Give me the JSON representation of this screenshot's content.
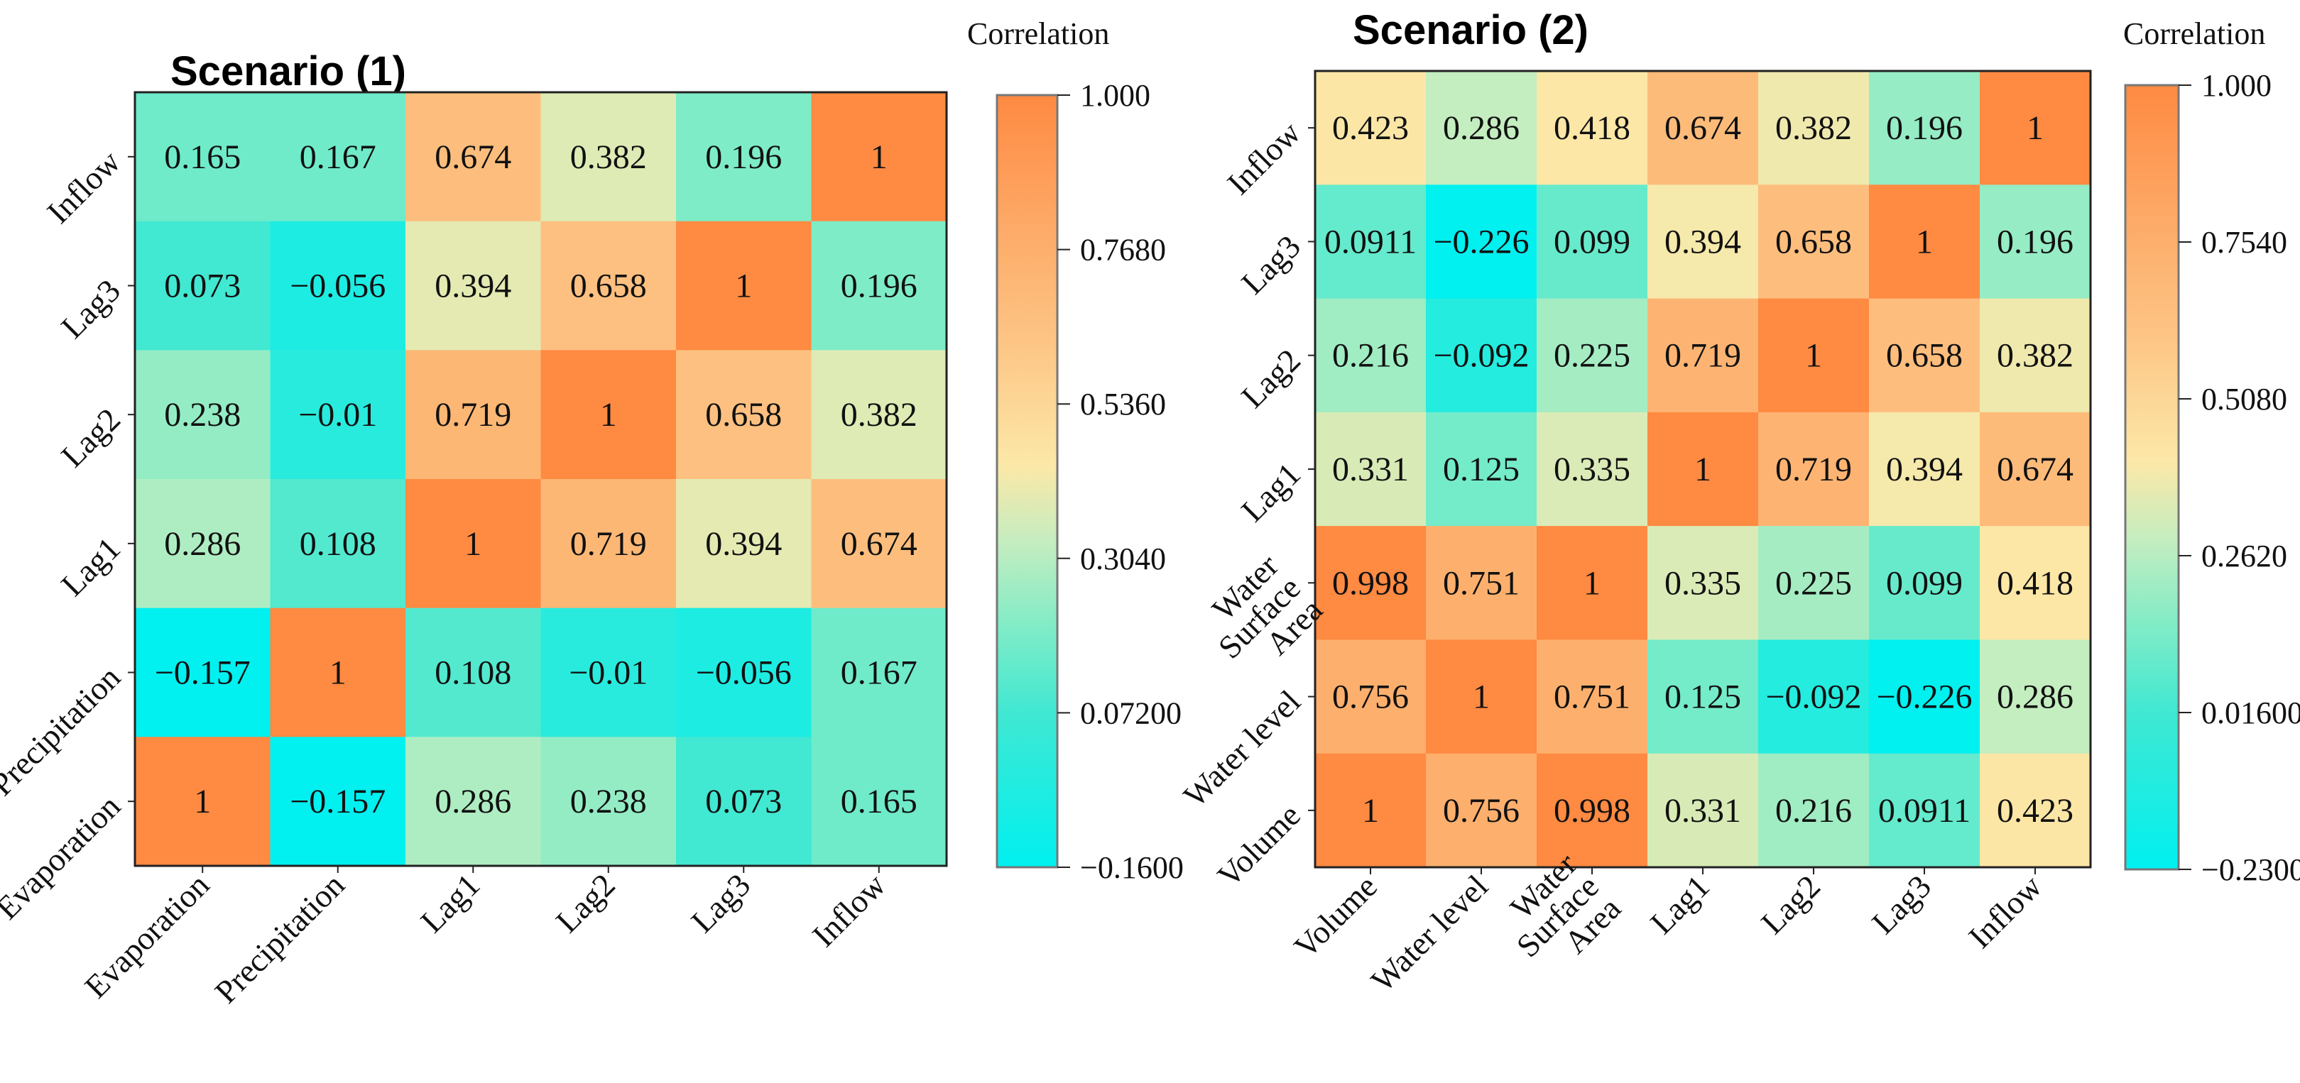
{
  "chart_data": [
    {
      "type": "heatmap",
      "title": "Scenario (1)",
      "colorbar_label": "Correlation",
      "colorbar_ticks": [
        "1.000",
        "0.7680",
        "0.5360",
        "0.3040",
        "0.07200",
        "−0.1600"
      ],
      "vmin": -0.16,
      "vmax": 1.0,
      "x_labels": [
        "Evaporation",
        "Precipitation",
        "Lag1",
        "Lag2",
        "Lag3",
        "Inflow"
      ],
      "y_labels_top_to_bottom": [
        "Inflow",
        "Lag3",
        "Lag2",
        "Lag1",
        "Precipitation",
        "Evaporation"
      ],
      "rows": [
        [
          "0.165",
          "0.167",
          "0.674",
          "0.382",
          "0.196",
          "1"
        ],
        [
          "0.073",
          "−0.056",
          "0.394",
          "0.658",
          "1",
          "0.196"
        ],
        [
          "0.238",
          "−0.01",
          "0.719",
          "1",
          "0.658",
          "0.382"
        ],
        [
          "0.286",
          "0.108",
          "1",
          "0.719",
          "0.394",
          "0.674"
        ],
        [
          "−0.157",
          "1",
          "0.108",
          "−0.01",
          "−0.056",
          "0.167"
        ],
        [
          "1",
          "−0.157",
          "0.286",
          "0.238",
          "0.073",
          "0.165"
        ]
      ]
    },
    {
      "type": "heatmap",
      "title": "Scenario (2)",
      "colorbar_label": "Correlation",
      "colorbar_ticks": [
        "1.000",
        "0.7540",
        "0.5080",
        "0.2620",
        "0.01600",
        "−0.2300"
      ],
      "vmin": -0.23,
      "vmax": 1.0,
      "x_labels": [
        "Volume",
        "Water level",
        "Water Surface Area",
        "Lag1",
        "Lag2",
        "Lag3",
        "Inflow"
      ],
      "y_labels_top_to_bottom": [
        "Inflow",
        "Lag3",
        "Lag2",
        "Lag1",
        "Water Surface Area",
        "Water level",
        "Volume"
      ],
      "rows": [
        [
          "0.423",
          "0.286",
          "0.418",
          "0.674",
          "0.382",
          "0.196",
          "1"
        ],
        [
          "0.0911",
          "−0.226",
          "0.099",
          "0.394",
          "0.658",
          "1",
          "0.196"
        ],
        [
          "0.216",
          "−0.092",
          "0.225",
          "0.719",
          "1",
          "0.658",
          "0.382"
        ],
        [
          "0.331",
          "0.125",
          "0.335",
          "1",
          "0.719",
          "0.394",
          "0.674"
        ],
        [
          "0.998",
          "0.751",
          "1",
          "0.335",
          "0.225",
          "0.099",
          "0.418"
        ],
        [
          "0.756",
          "1",
          "0.751",
          "0.125",
          "−0.092",
          "−0.226",
          "0.286"
        ],
        [
          "1",
          "0.756",
          "0.998",
          "0.331",
          "0.216",
          "0.0911",
          "0.423"
        ]
      ]
    }
  ]
}
